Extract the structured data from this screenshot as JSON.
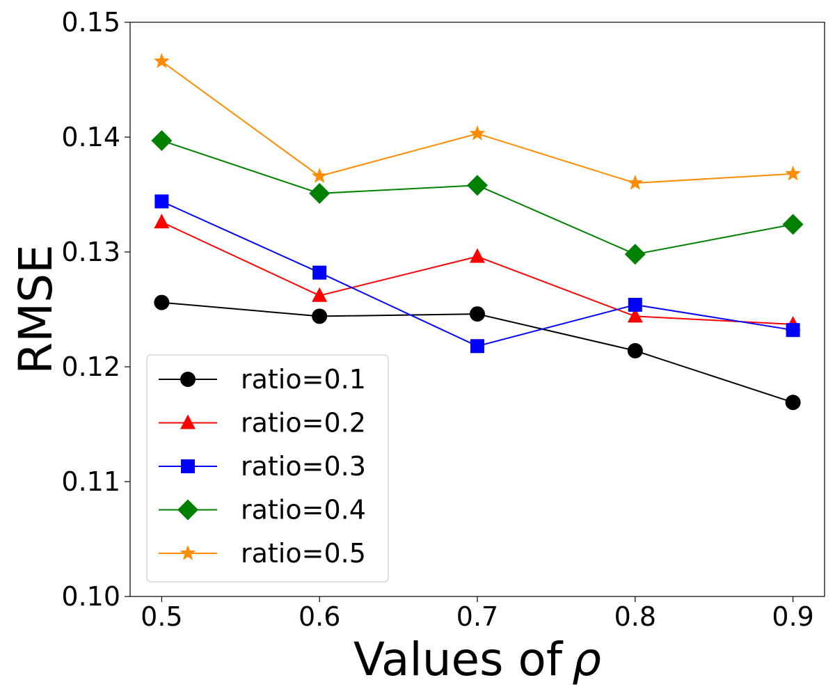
{
  "chart_data": {
    "type": "line",
    "title": "",
    "xlabel": "Values of",
    "xlabel_symbol": "ρ",
    "ylabel": "RMSE",
    "x": [
      0.5,
      0.6,
      0.7,
      0.8,
      0.9
    ],
    "xlim": [
      0.48,
      0.92
    ],
    "ylim": [
      0.1,
      0.15
    ],
    "xticks": [
      0.5,
      0.6,
      0.7,
      0.8,
      0.9
    ],
    "xtick_labels": [
      "0.5",
      "0.6",
      "0.7",
      "0.8",
      "0.9"
    ],
    "yticks": [
      0.1,
      0.11,
      0.12,
      0.13,
      0.14,
      0.15
    ],
    "ytick_labels": [
      "0.10",
      "0.11",
      "0.12",
      "0.13",
      "0.14",
      "0.15"
    ],
    "grid": false,
    "legend_position": "lower-left",
    "series": [
      {
        "name": "ratio=0.1",
        "color": "#000000",
        "marker": "circle",
        "values": [
          0.1256,
          0.1244,
          0.1246,
          0.1214,
          0.1169
        ]
      },
      {
        "name": "ratio=0.2",
        "color": "#ff0000",
        "marker": "triangle",
        "values": [
          0.1326,
          0.1262,
          0.1296,
          0.1244,
          0.1237
        ]
      },
      {
        "name": "ratio=0.3",
        "color": "#0000ff",
        "marker": "square",
        "values": [
          0.1344,
          0.1282,
          0.1218,
          0.1254,
          0.1232
        ]
      },
      {
        "name": "ratio=0.4",
        "color": "#008000",
        "marker": "diamond",
        "values": [
          0.1397,
          0.1351,
          0.1358,
          0.1298,
          0.1324
        ]
      },
      {
        "name": "ratio=0.5",
        "color": "#ff8c00",
        "marker": "star",
        "values": [
          0.1466,
          0.1366,
          0.1403,
          0.136,
          0.1368
        ]
      }
    ]
  }
}
